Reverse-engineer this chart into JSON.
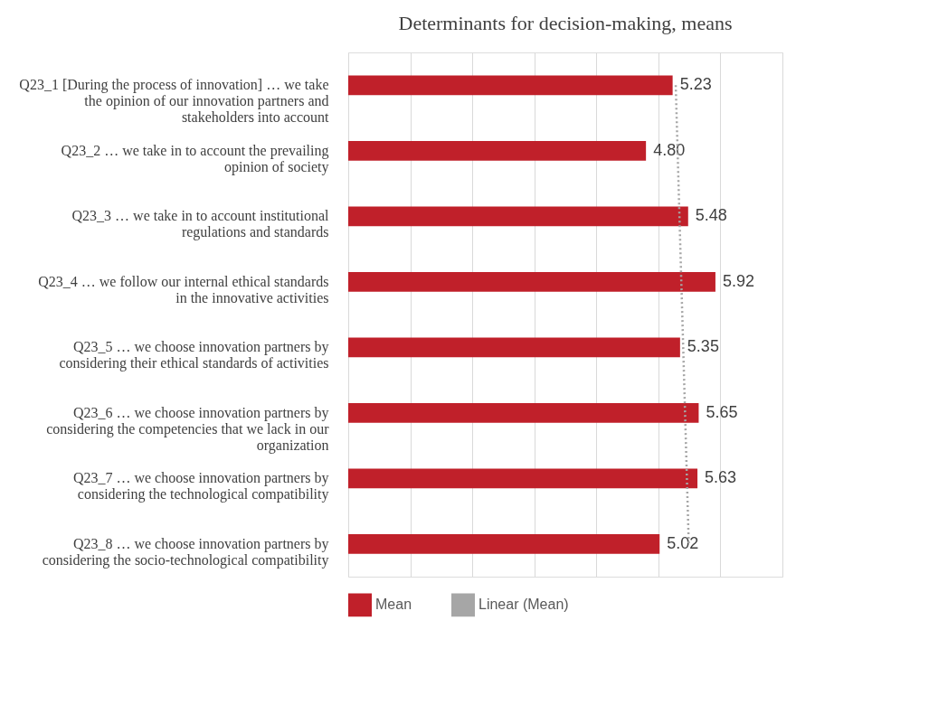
{
  "chart_data": {
    "type": "bar",
    "orientation": "horizontal",
    "title": "Determinants for decision-making, means",
    "categories": [
      "Q23_1 [During the process of innovation] … we take the opinion of our innovation partners and stakeholders into account",
      "Q23_2 … we take in to account the prevailing opinion of society",
      "Q23_3 … we take in to account institutional regulations and standards",
      "Q23_4 … we follow our internal ethical standards in the innovative activities",
      "Q23_5 … we choose innovation partners by considering their ethical standards of activities",
      "Q23_6 … we choose innovation partners by considering the competencies that we lack in our organization",
      "Q23_7 … we choose innovation partners by considering the technological compatibility",
      "Q23_8 … we choose innovation partners by considering the socio-technological compatibility"
    ],
    "series": [
      {
        "name": "Mean",
        "color": "#c0202a",
        "values": [
          5.23,
          4.8,
          5.48,
          5.92,
          5.35,
          5.65,
          5.63,
          5.02
        ],
        "value_labels": [
          "5.23",
          "4.80",
          "5.48",
          "5.92",
          "5.35",
          "5.65",
          "5.63",
          "5.02"
        ]
      },
      {
        "name": "Linear (Mean)",
        "type": "line",
        "color": "#a6a6a6",
        "line_style": "dotted",
        "values": [
          5.28,
          5.31,
          5.34,
          5.37,
          5.4,
          5.43,
          5.46,
          5.49
        ]
      }
    ],
    "xlim": [
      0,
      7
    ],
    "xticks": [
      {
        "value": 0,
        "label": null
      },
      {
        "value": 1,
        "label": null
      },
      {
        "value": 2,
        "label": null
      },
      {
        "value": 3,
        "label": null
      },
      {
        "value": 4,
        "label": null
      },
      {
        "value": 5,
        "label": null
      },
      {
        "value": 6,
        "label": null
      },
      {
        "value": 7,
        "label": null
      }
    ],
    "grid": "x",
    "legend": "bottom",
    "tick_labels": "y"
  }
}
